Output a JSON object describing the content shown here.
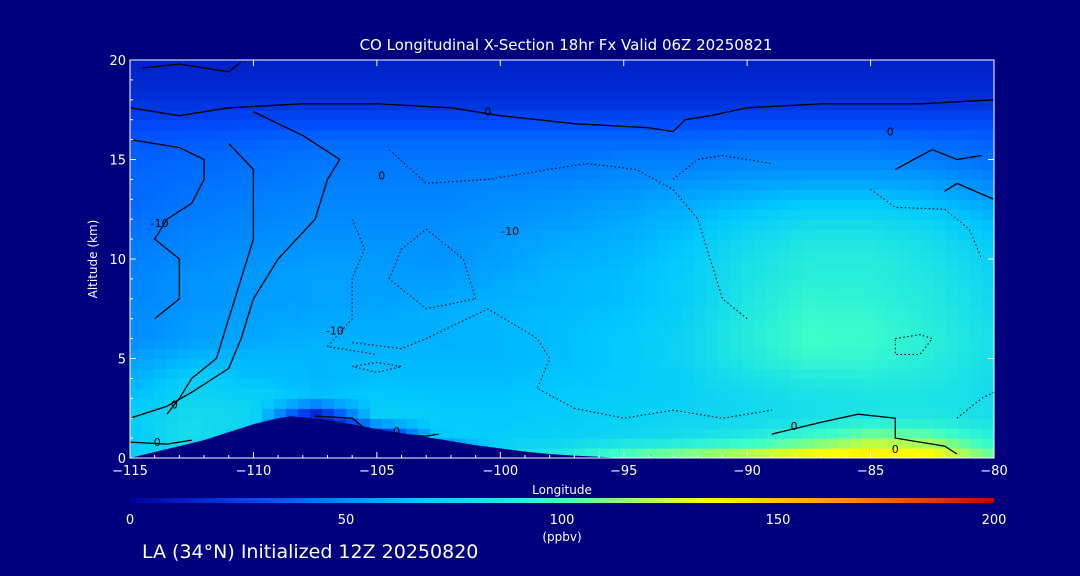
{
  "chart_data": {
    "type": "heatmap",
    "title": "CO Longitudinal X-Section 18hr  Fx Valid 06Z 20250821",
    "xlabel": "Longitude",
    "ylabel": "Altitude (km)",
    "xlim": [
      -115,
      -80
    ],
    "ylim": [
      0,
      20
    ],
    "xticks": [
      -115,
      -110,
      -105,
      -100,
      -95,
      -90,
      -85,
      -80
    ],
    "yticks": [
      0,
      5,
      10,
      15,
      20
    ],
    "colorbar": {
      "label": "(ppbv)",
      "range": [
        0,
        200
      ],
      "ticks": [
        0,
        50,
        100,
        150,
        200
      ],
      "colors": [
        "#0000a0",
        "#0050ff",
        "#00c8ff",
        "#3cffc8",
        "#ffff00",
        "#ff8c00",
        "#c80000"
      ]
    },
    "x": [
      -115,
      -112.5,
      -110,
      -107.5,
      -105,
      -102.5,
      -100,
      -97.5,
      -95,
      -92.5,
      -90,
      -87.5,
      -85,
      -82.5,
      -80
    ],
    "y": [
      0,
      1,
      2,
      3,
      4,
      5,
      6,
      7,
      8,
      9,
      10,
      11,
      12,
      13,
      14,
      15,
      16,
      17,
      18,
      19,
      20
    ],
    "z": [
      [
        70,
        75,
        0,
        0,
        0,
        0,
        80,
        88,
        110,
        120,
        130,
        140,
        145,
        140,
        110
      ],
      [
        68,
        80,
        70,
        0,
        0,
        68,
        70,
        72,
        75,
        80,
        88,
        100,
        115,
        110,
        90
      ],
      [
        70,
        78,
        75,
        0,
        72,
        70,
        68,
        70,
        72,
        74,
        76,
        80,
        85,
        85,
        80
      ],
      [
        65,
        75,
        72,
        65,
        68,
        66,
        66,
        68,
        70,
        72,
        76,
        80,
        82,
        82,
        78
      ],
      [
        60,
        70,
        65,
        62,
        64,
        64,
        64,
        66,
        68,
        72,
        80,
        86,
        88,
        85,
        78
      ],
      [
        55,
        62,
        62,
        62,
        62,
        62,
        62,
        64,
        68,
        74,
        86,
        96,
        95,
        88,
        80
      ],
      [
        50,
        55,
        58,
        60,
        60,
        60,
        62,
        64,
        68,
        74,
        88,
        100,
        98,
        90,
        80
      ],
      [
        50,
        54,
        56,
        58,
        58,
        60,
        62,
        64,
        66,
        72,
        86,
        98,
        96,
        88,
        78
      ],
      [
        48,
        52,
        54,
        56,
        56,
        58,
        60,
        62,
        64,
        70,
        84,
        94,
        92,
        86,
        76
      ],
      [
        48,
        52,
        54,
        56,
        55,
        54,
        58,
        62,
        64,
        70,
        82,
        90,
        90,
        84,
        74
      ],
      [
        46,
        50,
        52,
        54,
        54,
        52,
        56,
        60,
        62,
        68,
        80,
        88,
        88,
        82,
        72
      ],
      [
        44,
        48,
        50,
        52,
        52,
        52,
        54,
        58,
        60,
        66,
        76,
        84,
        84,
        78,
        68
      ],
      [
        42,
        46,
        48,
        50,
        50,
        50,
        52,
        54,
        58,
        62,
        70,
        76,
        76,
        72,
        62
      ],
      [
        40,
        44,
        46,
        48,
        48,
        48,
        50,
        52,
        54,
        58,
        62,
        66,
        66,
        62,
        55
      ],
      [
        40,
        42,
        44,
        46,
        46,
        46,
        48,
        48,
        50,
        52,
        54,
        56,
        56,
        54,
        48
      ],
      [
        38,
        40,
        42,
        44,
        44,
        44,
        44,
        44,
        46,
        46,
        48,
        48,
        48,
        46,
        42
      ],
      [
        35,
        36,
        38,
        40,
        40,
        40,
        40,
        40,
        40,
        40,
        42,
        42,
        42,
        40,
        38
      ],
      [
        28,
        28,
        30,
        30,
        30,
        30,
        30,
        30,
        30,
        30,
        30,
        30,
        30,
        30,
        30
      ],
      [
        20,
        20,
        20,
        20,
        20,
        20,
        20,
        20,
        20,
        20,
        20,
        20,
        20,
        20,
        20
      ],
      [
        16,
        16,
        16,
        16,
        16,
        16,
        16,
        16,
        16,
        16,
        16,
        16,
        16,
        16,
        16
      ],
      [
        14,
        14,
        14,
        14,
        14,
        14,
        14,
        14,
        14,
        14,
        14,
        14,
        14,
        14,
        14
      ]
    ],
    "terrain": {
      "x": [
        -115,
        -114,
        -113,
        -112,
        -111,
        -110,
        -109,
        -108.5,
        -108,
        -107,
        -106,
        -105,
        -104,
        -103,
        -102,
        -101,
        -100,
        -99,
        -98,
        -97,
        -96,
        -95,
        -80
      ],
      "y": [
        0,
        0.3,
        0.6,
        0.9,
        1.3,
        1.7,
        2.0,
        2.1,
        2.05,
        1.9,
        1.7,
        1.45,
        1.25,
        1.05,
        0.85,
        0.65,
        0.48,
        0.32,
        0.2,
        0.12,
        0.06,
        0,
        0
      ]
    },
    "contours": [
      {
        "level": "0",
        "style": "solid",
        "points": [
          [
            -114.5,
            19.6
          ],
          [
            -113,
            19.8
          ],
          [
            -111,
            19.4
          ],
          [
            -110.5,
            19.9
          ]
        ]
      },
      {
        "level": "0",
        "style": "solid",
        "points": [
          [
            -115,
            17.6
          ],
          [
            -113,
            17.2
          ],
          [
            -111,
            17.6
          ],
          [
            -108,
            17.8
          ],
          [
            -105,
            17.8
          ],
          [
            -102,
            17.6
          ],
          [
            -100,
            17.2
          ],
          [
            -97,
            16.8
          ],
          [
            -94,
            16.6
          ],
          [
            -93,
            16.4
          ],
          [
            -92.5,
            17.0
          ],
          [
            -91.5,
            17.2
          ],
          [
            -90,
            17.6
          ],
          [
            -87,
            17.8
          ],
          [
            -85,
            17.8
          ],
          [
            -83,
            17.8
          ],
          [
            -80,
            18.0
          ]
        ]
      },
      {
        "level": "0",
        "style": "solid",
        "points": [
          [
            -115,
            16.0
          ],
          [
            -113,
            15.6
          ],
          [
            -112,
            15.0
          ],
          [
            -112,
            14.0
          ],
          [
            -112.5,
            12.8
          ],
          [
            -113.5,
            12.0
          ],
          [
            -114,
            11.0
          ],
          [
            -113,
            10.0
          ],
          [
            -113,
            8.0
          ],
          [
            -114,
            7.0
          ]
        ]
      },
      {
        "level": "0",
        "style": "solid",
        "points": [
          [
            -111,
            15.8
          ],
          [
            -110,
            14.5
          ],
          [
            -110,
            13.0
          ],
          [
            -110,
            11.0
          ],
          [
            -110.5,
            9.0
          ],
          [
            -111,
            7.0
          ],
          [
            -111.5,
            5.0
          ],
          [
            -112.5,
            4.0
          ],
          [
            -113,
            3.0
          ],
          [
            -113.5,
            2.2
          ]
        ]
      },
      {
        "level": "0",
        "style": "solid",
        "points": [
          [
            -110,
            17.4
          ],
          [
            -108,
            16.2
          ],
          [
            -106.5,
            15.0
          ],
          [
            -107,
            14.0
          ],
          [
            -107.5,
            12.0
          ],
          [
            -109,
            10.0
          ],
          [
            -110,
            8.0
          ],
          [
            -110.5,
            6.0
          ],
          [
            -111,
            4.5
          ],
          [
            -112.5,
            3.3
          ],
          [
            -113.5,
            2.6
          ],
          [
            -115,
            2.0
          ]
        ]
      },
      {
        "level": "0",
        "style": "solid",
        "points": [
          [
            -115,
            0.8
          ],
          [
            -113.5,
            0.7
          ],
          [
            -112.5,
            0.9
          ]
        ]
      },
      {
        "level": "0",
        "style": "solid",
        "points": [
          [
            -110.5,
            1.2
          ],
          [
            -109.5,
            1.7
          ],
          [
            -108.5,
            1.6
          ]
        ]
      },
      {
        "level": "0",
        "style": "solid",
        "points": [
          [
            -107.5,
            2.1
          ],
          [
            -106,
            2.0
          ],
          [
            -105.5,
            1.5
          ],
          [
            -104.5,
            1.2
          ],
          [
            -103,
            1.1
          ],
          [
            -102.5,
            1.2
          ]
        ]
      },
      {
        "level": "0",
        "style": "solid",
        "points": [
          [
            -89,
            1.2
          ],
          [
            -87,
            1.8
          ],
          [
            -85.5,
            2.2
          ],
          [
            -84,
            2.0
          ],
          [
            -84,
            1.0
          ],
          [
            -82,
            0.6
          ],
          [
            -81.5,
            0.2
          ]
        ]
      },
      {
        "level": "0",
        "style": "solid",
        "points": [
          [
            -84,
            14.5
          ],
          [
            -82.5,
            15.5
          ],
          [
            -81.5,
            15.0
          ],
          [
            -80.5,
            15.2
          ]
        ]
      },
      {
        "level": "0",
        "style": "solid",
        "points": [
          [
            -80,
            13.0
          ],
          [
            -81.5,
            13.8
          ],
          [
            -82,
            13.4
          ]
        ]
      },
      {
        "level": "-10",
        "style": "dashed",
        "points": [
          [
            -101,
            8.0
          ],
          [
            -101.5,
            10.0
          ],
          [
            -103,
            11.5
          ],
          [
            -104,
            10.5
          ],
          [
            -104.5,
            9.0
          ],
          [
            -103,
            7.5
          ],
          [
            -101,
            8.0
          ]
        ]
      },
      {
        "level": "-10",
        "style": "dashed",
        "points": [
          [
            -106,
            5.8
          ],
          [
            -104,
            5.5
          ],
          [
            -103,
            6.0
          ],
          [
            -100.5,
            7.5
          ],
          [
            -98.5,
            6.0
          ],
          [
            -98,
            5.0
          ],
          [
            -98.5,
            3.5
          ],
          [
            -97,
            2.5
          ],
          [
            -95,
            2.0
          ],
          [
            -93,
            2.4
          ],
          [
            -91,
            2.0
          ],
          [
            -89,
            2.4
          ]
        ]
      },
      {
        "level": "-10",
        "style": "dashed",
        "points": [
          [
            -106,
            12.0
          ],
          [
            -105.5,
            10.5
          ],
          [
            -106,
            9.0
          ],
          [
            -106,
            7.0
          ],
          [
            -107,
            5.6
          ],
          [
            -105,
            5.2
          ]
        ]
      },
      {
        "level": "-10",
        "style": "dashed",
        "points": [
          [
            -104.5,
            15.5
          ],
          [
            -103,
            13.8
          ],
          [
            -100.5,
            14.0
          ],
          [
            -98,
            14.5
          ],
          [
            -96.5,
            14.8
          ],
          [
            -94.5,
            14.5
          ],
          [
            -93,
            13.5
          ],
          [
            -92,
            12.0
          ],
          [
            -91.5,
            10.0
          ],
          [
            -91,
            8.0
          ],
          [
            -90,
            7.0
          ]
        ]
      },
      {
        "level": "-10",
        "style": "dashed",
        "points": [
          [
            -93,
            14.0
          ],
          [
            -92,
            15.0
          ],
          [
            -91,
            15.2
          ],
          [
            -89,
            14.8
          ]
        ]
      },
      {
        "level": "-10",
        "style": "dashed",
        "points": [
          [
            -84,
            6.0
          ],
          [
            -83,
            6.2
          ],
          [
            -82.5,
            6.0
          ],
          [
            -83,
            5.2
          ],
          [
            -84,
            5.2
          ],
          [
            -84,
            6.0
          ]
        ]
      },
      {
        "level": "-10",
        "style": "dashed",
        "points": [
          [
            -106,
            4.6
          ],
          [
            -105,
            4.8
          ],
          [
            -104,
            4.6
          ],
          [
            -105,
            4.3
          ],
          [
            -106,
            4.6
          ]
        ]
      },
      {
        "level": "-10",
        "style": "dashed",
        "points": [
          [
            -85,
            13.5
          ],
          [
            -84,
            12.6
          ],
          [
            -82,
            12.5
          ],
          [
            -81,
            11.5
          ],
          [
            -80.5,
            10.0
          ]
        ]
      },
      {
        "level": "-10",
        "style": "dashed",
        "points": [
          [
            -81.5,
            2.0
          ],
          [
            -80.5,
            3.0
          ],
          [
            -80,
            3.3
          ]
        ]
      }
    ],
    "contour_labels": [
      {
        "text": "0",
        "x": -100.5,
        "y": 17.4
      },
      {
        "text": "0",
        "x": -84.2,
        "y": 16.4
      },
      {
        "text": "0",
        "x": -104.8,
        "y": 14.2
      },
      {
        "text": "-10",
        "x": -113.8,
        "y": 11.8
      },
      {
        "text": "-10",
        "x": -99.6,
        "y": 11.4
      },
      {
        "text": "-10",
        "x": -106.7,
        "y": 6.4
      },
      {
        "text": "0",
        "x": -113.2,
        "y": 2.7
      },
      {
        "text": "0",
        "x": -113.9,
        "y": 0.8
      },
      {
        "text": "0",
        "x": -104.2,
        "y": 1.35
      },
      {
        "text": "0",
        "x": -88.1,
        "y": 1.6
      },
      {
        "text": "0",
        "x": -84,
        "y": 0.45
      }
    ]
  },
  "footer_text": "LA (34°N) Initialized 12Z 20250820"
}
